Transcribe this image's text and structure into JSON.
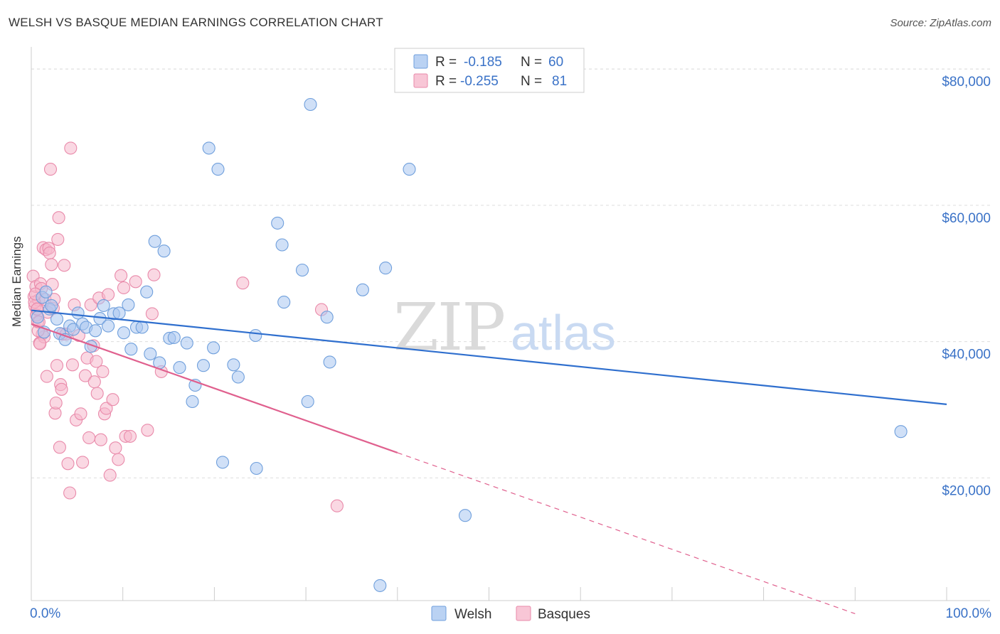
{
  "title": "WELSH VS BASQUE MEDIAN EARNINGS CORRELATION CHART",
  "source": "Source: ZipAtlas.com",
  "colors": {
    "welsh_fill": "#a9c7f0",
    "welsh_stroke": "#6f9fdc",
    "welsh_line": "#2f6fce",
    "basque_fill": "#f6b8cc",
    "basque_stroke": "#e98aaa",
    "basque_line": "#e0608e",
    "axis_text": "#3a72c7",
    "grid": "#dddddd"
  },
  "legend": [
    {
      "r_label": "R = ",
      "r_value": "-0.185",
      "n_label": "N = ",
      "n_value": "60"
    },
    {
      "r_label": "R = ",
      "r_value": "-0.255",
      "n_label": "N = ",
      "n_value": "81"
    }
  ],
  "watermark": {
    "zip": "ZIP",
    "atlas": "atlas"
  },
  "chart_data": {
    "type": "scatter",
    "title": "WELSH VS BASQUE MEDIAN EARNINGS CORRELATION CHART",
    "xlabel": "",
    "ylabel": "Median Earnings",
    "xlim": [
      0,
      100
    ],
    "ylim": [
      2000,
      82000
    ],
    "x_tick_labels": [
      "0.0%",
      "100.0%"
    ],
    "y_ticks": [
      20000,
      40000,
      60000,
      80000
    ],
    "y_tick_labels": [
      "$20,000",
      "$40,000",
      "$60,000",
      "$80,000"
    ],
    "grid": true,
    "legend_position": "bottom-center",
    "series": [
      {
        "name": "Welsh",
        "r": -0.185,
        "n": 60,
        "trend": {
          "x0": 0,
          "y0": 44600,
          "x1": 100,
          "y1": 30800,
          "dashed_to": 100
        },
        "points": [
          [
            0.7,
            43600
          ],
          [
            1.2,
            46500
          ],
          [
            1.6,
            47300
          ],
          [
            2,
            44800
          ],
          [
            2.2,
            45300
          ],
          [
            2.8,
            43300
          ],
          [
            3.1,
            41200
          ],
          [
            3.7,
            40300
          ],
          [
            4.2,
            42300
          ],
          [
            4.6,
            41800
          ],
          [
            5.1,
            44200
          ],
          [
            5.6,
            42600
          ],
          [
            6,
            42100
          ],
          [
            6.5,
            39300
          ],
          [
            7,
            41600
          ],
          [
            7.5,
            43400
          ],
          [
            7.9,
            45300
          ],
          [
            8.4,
            42300
          ],
          [
            9,
            44100
          ],
          [
            9.6,
            44200
          ],
          [
            10.1,
            41300
          ],
          [
            10.6,
            45400
          ],
          [
            10.9,
            38900
          ],
          [
            11.5,
            42100
          ],
          [
            12.1,
            42100
          ],
          [
            12.6,
            47300
          ],
          [
            13,
            38200
          ],
          [
            13.5,
            54700
          ],
          [
            14,
            36900
          ],
          [
            14.5,
            53300
          ],
          [
            15.1,
            40500
          ],
          [
            15.6,
            40600
          ],
          [
            16.2,
            36200
          ],
          [
            17,
            39800
          ],
          [
            17.6,
            31200
          ],
          [
            17.9,
            33600
          ],
          [
            18.8,
            36500
          ],
          [
            19.4,
            68400
          ],
          [
            19.9,
            39100
          ],
          [
            20.4,
            65300
          ],
          [
            20.9,
            22300
          ],
          [
            22.1,
            36600
          ],
          [
            22.6,
            34800
          ],
          [
            24.5,
            40900
          ],
          [
            24.6,
            21400
          ],
          [
            26.9,
            57400
          ],
          [
            27.4,
            54200
          ],
          [
            27.6,
            45800
          ],
          [
            29.6,
            50500
          ],
          [
            30.2,
            31200
          ],
          [
            30.5,
            74800
          ],
          [
            32.3,
            43600
          ],
          [
            32.6,
            37000
          ],
          [
            36.2,
            47600
          ],
          [
            38.1,
            4200
          ],
          [
            38.7,
            50800
          ],
          [
            41.3,
            65300
          ],
          [
            47.4,
            14500
          ],
          [
            95,
            26800
          ],
          [
            1.4,
            41400
          ]
        ]
      },
      {
        "name": "Basques",
        "r": -0.255,
        "n": 81,
        "trend": {
          "x0": 0,
          "y0": 42600,
          "x1": 40,
          "y1": 23700,
          "dashed_to": 90
        },
        "points": [
          [
            0.2,
            49600
          ],
          [
            0.3,
            46600
          ],
          [
            0.4,
            45200
          ],
          [
            0.5,
            48100
          ],
          [
            0.6,
            44700
          ],
          [
            0.7,
            42900
          ],
          [
            0.8,
            46100
          ],
          [
            0.9,
            39800
          ],
          [
            1,
            48500
          ],
          [
            1.1,
            47800
          ],
          [
            1.2,
            41100
          ],
          [
            1.3,
            53800
          ],
          [
            1.4,
            40700
          ],
          [
            1.5,
            46200
          ],
          [
            1.6,
            53500
          ],
          [
            1.7,
            34900
          ],
          [
            1.8,
            44300
          ],
          [
            1.9,
            53700
          ],
          [
            2,
            53000
          ],
          [
            2.1,
            65300
          ],
          [
            2.2,
            51300
          ],
          [
            2.3,
            48400
          ],
          [
            2.4,
            44900
          ],
          [
            2.5,
            46200
          ],
          [
            2.6,
            29500
          ],
          [
            2.7,
            31000
          ],
          [
            2.8,
            36500
          ],
          [
            2.9,
            55000
          ],
          [
            3,
            58200
          ],
          [
            3.1,
            24500
          ],
          [
            3.2,
            33700
          ],
          [
            3.3,
            33000
          ],
          [
            3.4,
            41100
          ],
          [
            3.6,
            51200
          ],
          [
            3.8,
            41100
          ],
          [
            4,
            22100
          ],
          [
            4.2,
            17800
          ],
          [
            4.3,
            68400
          ],
          [
            4.5,
            36600
          ],
          [
            4.7,
            45400
          ],
          [
            4.9,
            28500
          ],
          [
            5.2,
            40900
          ],
          [
            5.4,
            29400
          ],
          [
            5.6,
            22300
          ],
          [
            5.9,
            35000
          ],
          [
            6.1,
            37600
          ],
          [
            6.3,
            25900
          ],
          [
            6.5,
            45400
          ],
          [
            6.8,
            39400
          ],
          [
            6.9,
            34100
          ],
          [
            7.1,
            37100
          ],
          [
            7.2,
            32400
          ],
          [
            7.4,
            46400
          ],
          [
            7.6,
            25600
          ],
          [
            7.8,
            35600
          ],
          [
            8,
            29400
          ],
          [
            8.2,
            30200
          ],
          [
            8.4,
            46900
          ],
          [
            8.6,
            20400
          ],
          [
            8.9,
            31500
          ],
          [
            9.2,
            24400
          ],
          [
            9.5,
            22700
          ],
          [
            9.8,
            49700
          ],
          [
            10.1,
            47900
          ],
          [
            10.3,
            26100
          ],
          [
            10.8,
            26100
          ],
          [
            11.4,
            48800
          ],
          [
            12.7,
            27000
          ],
          [
            13.2,
            44100
          ],
          [
            13.4,
            49800
          ],
          [
            14.2,
            35600
          ],
          [
            23.1,
            48600
          ],
          [
            31.7,
            44700
          ],
          [
            33.4,
            15900
          ],
          [
            0.35,
            45800
          ],
          [
            0.45,
            47000
          ],
          [
            0.55,
            43900
          ],
          [
            0.65,
            44800
          ],
          [
            0.75,
            41600
          ],
          [
            0.85,
            42900
          ],
          [
            0.95,
            39700
          ]
        ]
      }
    ]
  }
}
